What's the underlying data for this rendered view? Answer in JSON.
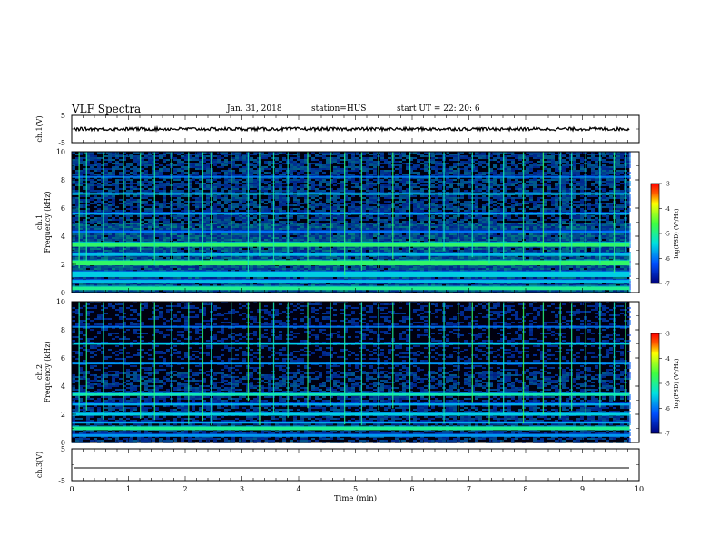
{
  "header": {
    "title": "VLF Spectra",
    "date": "Jan. 31, 2018",
    "station": "station=HUS",
    "start": "start UT =  22: 20: 6"
  },
  "colors": {
    "background_spectrogram": "#000010",
    "low": "#00007a",
    "mid_low": "#0050ff",
    "mid": "#00e0e0",
    "mid_high": "#40ff40",
    "high": "#ffff00",
    "max": "#ff0000"
  },
  "chart_data": [
    {
      "type": "line",
      "name": "ch1-waveform",
      "ylabel": "ch.1(V)",
      "ylim": [
        -5,
        5
      ],
      "yticks": [
        "5",
        "-5"
      ],
      "xlim": [
        0,
        10
      ],
      "x_extent_min": [
        0.0,
        9.83
      ],
      "signal_mean_v": 0,
      "signal_amplitude_v": 0.6
    },
    {
      "type": "heatmap",
      "name": "ch1-spectrogram",
      "ylabel": "ch.1\nFrequency (kHz)",
      "ylim": [
        0,
        10
      ],
      "yticks": [
        "0",
        "2",
        "4",
        "6",
        "8",
        "10"
      ],
      "xlim": [
        0,
        10
      ],
      "x_extent_min": [
        0.0,
        9.83
      ],
      "colorbar": {
        "label": "log(PSD) (V²/Hz)",
        "range": [
          -7,
          -3
        ],
        "ticks": [
          "-3",
          "-4",
          "-5",
          "-6",
          "-7"
        ]
      },
      "bands": [
        {
          "f_khz": 0.3,
          "log_psd": -5.0,
          "width_khz": 0.25
        },
        {
          "f_khz": 0.8,
          "log_psd": -5.6,
          "width_khz": 0.2
        },
        {
          "f_khz": 1.3,
          "log_psd": -5.5,
          "width_khz": 0.4
        },
        {
          "f_khz": 2.1,
          "log_psd": -4.8,
          "width_khz": 0.35
        },
        {
          "f_khz": 2.7,
          "log_psd": -5.6,
          "width_khz": 0.2
        },
        {
          "f_khz": 3.4,
          "log_psd": -4.8,
          "width_khz": 0.3
        },
        {
          "f_khz": 4.3,
          "log_psd": -6.0,
          "width_khz": 0.2
        },
        {
          "f_khz": 5.6,
          "log_psd": -5.7,
          "width_khz": 0.15
        },
        {
          "f_khz": 7.0,
          "log_psd": -5.4,
          "width_khz": 0.12
        },
        {
          "f_khz": 8.2,
          "log_psd": -5.9,
          "width_khz": 0.1
        }
      ],
      "sferics_min": [
        0.12,
        0.25,
        0.55,
        0.9,
        1.2,
        1.45,
        1.75,
        2.05,
        2.3,
        2.45,
        2.8,
        3.1,
        3.3,
        3.55,
        3.8,
        4.15,
        4.55,
        4.8,
        5.1,
        5.4,
        5.65,
        5.95,
        6.3,
        6.55,
        6.8,
        7.05,
        7.35,
        7.6,
        7.95,
        8.3,
        8.6,
        8.8,
        9.05,
        9.3,
        9.55,
        9.75
      ]
    },
    {
      "type": "heatmap",
      "name": "ch2-spectrogram",
      "ylabel": "ch.2\nFrequency (kHz)",
      "ylim": [
        0,
        10
      ],
      "yticks": [
        "0",
        "2",
        "4",
        "6",
        "8",
        "10"
      ],
      "xlim": [
        0,
        10
      ],
      "x_extent_min": [
        0.0,
        9.83
      ],
      "colorbar": {
        "label": "log(PSD) (V²/Hz)",
        "range": [
          -7,
          -3
        ],
        "ticks": [
          "-3",
          "-4",
          "-5",
          "-6",
          "-7"
        ]
      },
      "bands": [
        {
          "f_khz": 0.5,
          "log_psd": -5.8,
          "width_khz": 0.2
        },
        {
          "f_khz": 1.0,
          "log_psd": -5.0,
          "width_khz": 0.25
        },
        {
          "f_khz": 1.4,
          "log_psd": -5.7,
          "width_khz": 0.12
        },
        {
          "f_khz": 2.0,
          "log_psd": -5.5,
          "width_khz": 0.2
        },
        {
          "f_khz": 2.7,
          "log_psd": -5.7,
          "width_khz": 0.15
        },
        {
          "f_khz": 3.4,
          "log_psd": -5.2,
          "width_khz": 0.18
        },
        {
          "f_khz": 5.6,
          "log_psd": -5.8,
          "width_khz": 0.12
        },
        {
          "f_khz": 7.0,
          "log_psd": -5.5,
          "width_khz": 0.12
        },
        {
          "f_khz": 8.2,
          "log_psd": -5.9,
          "width_khz": 0.1
        }
      ],
      "sferics_min": [
        0.12,
        0.25,
        0.55,
        0.9,
        1.2,
        1.45,
        1.75,
        2.05,
        2.3,
        2.45,
        2.8,
        3.1,
        3.3,
        3.55,
        3.8,
        4.15,
        4.55,
        4.8,
        5.1,
        5.4,
        5.65,
        5.95,
        6.3,
        6.55,
        6.8,
        7.05,
        7.35,
        7.6,
        7.95,
        8.3,
        8.6,
        8.8,
        9.05,
        9.3,
        9.55,
        9.75
      ]
    },
    {
      "type": "line",
      "name": "ch3-waveform",
      "ylabel": "ch.3(V)",
      "ylim": [
        -5,
        5
      ],
      "yticks": [
        "5",
        "-5"
      ],
      "xlim": [
        0,
        10
      ],
      "x_extent_min": [
        0.0,
        9.83
      ],
      "signal_mean_v": -1.0,
      "signal_amplitude_v": 0
    }
  ],
  "xaxis": {
    "label": "Time (min)",
    "ticks": [
      "0",
      "1",
      "2",
      "3",
      "4",
      "5",
      "6",
      "7",
      "8",
      "9",
      "10"
    ]
  }
}
